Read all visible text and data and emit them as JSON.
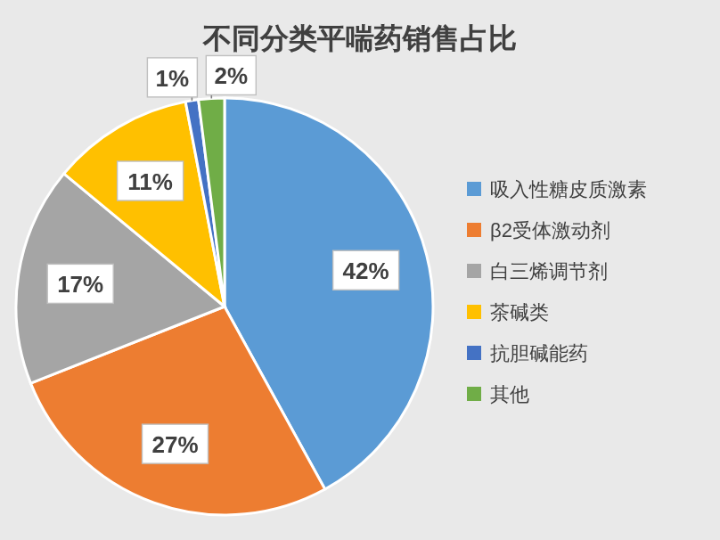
{
  "chart_data": {
    "type": "pie",
    "title": "不同分类平喘药销售占比",
    "categories": [
      "吸入性糖皮质激素",
      "β2受体激动剂",
      "白三烯调节剂",
      "茶碱类",
      "抗胆碱能药",
      "其他"
    ],
    "values": [
      42,
      27,
      17,
      11,
      1,
      2
    ],
    "value_labels": [
      "42%",
      "27%",
      "17%",
      "11%",
      "1%",
      "2%"
    ],
    "colors": [
      "#5b9bd5",
      "#ed7d31",
      "#a5a5a5",
      "#ffc000",
      "#4472c4",
      "#70ad47"
    ],
    "legend": "right"
  }
}
